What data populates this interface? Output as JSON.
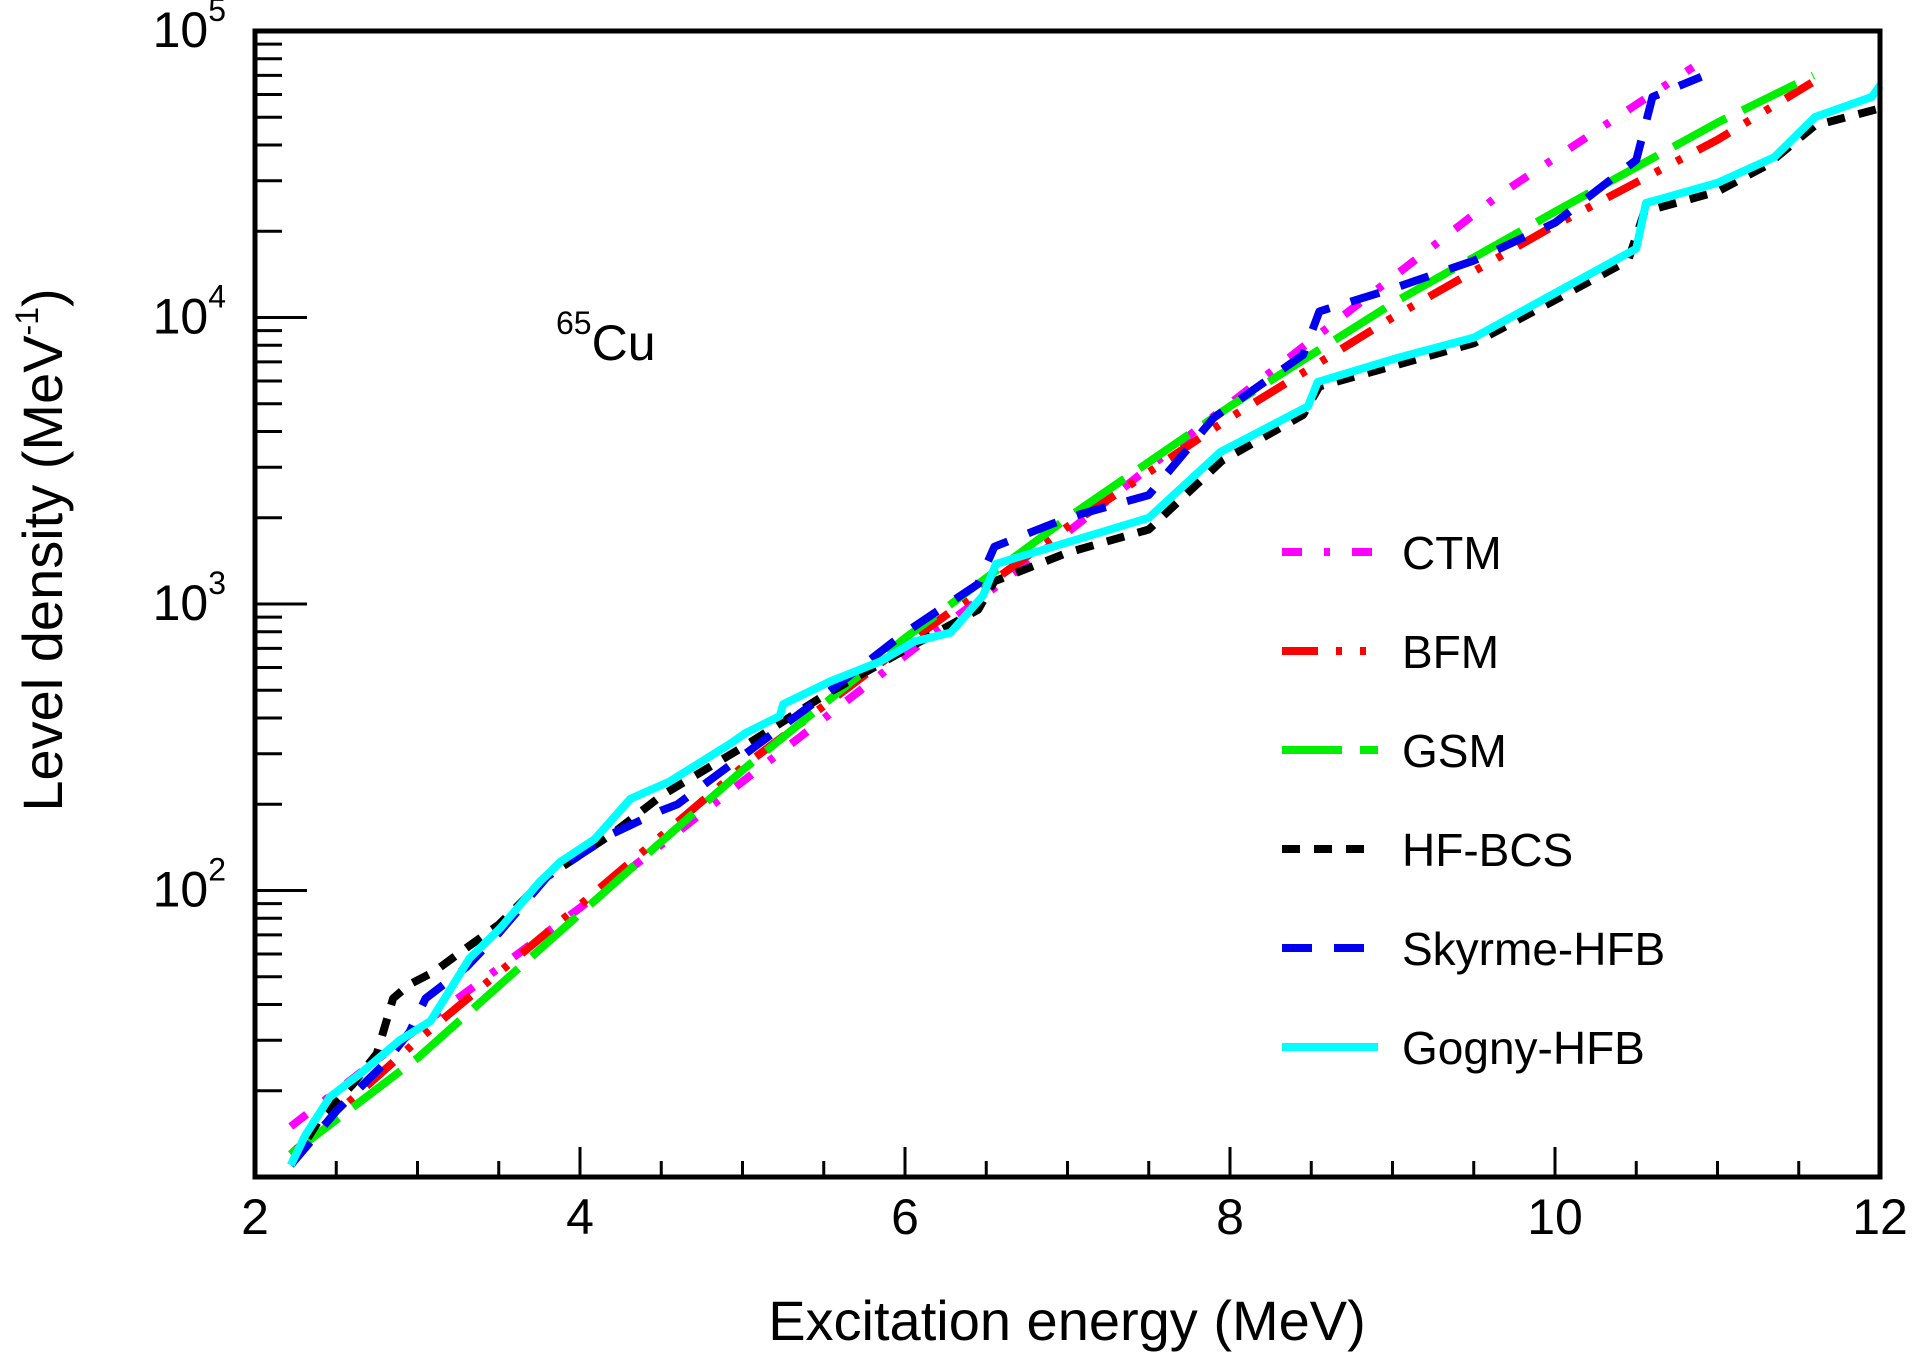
{
  "chart_data": {
    "type": "line",
    "title": "",
    "annotation": {
      "superscript": "65",
      "text": "Cu",
      "location": "upper-left"
    },
    "xlabel": "Excitation energy (MeV)",
    "ylabel": "Level density (MeV",
    "ylabel_sup": "-1",
    "ylabel_close": ")",
    "xlim": [
      2,
      12
    ],
    "ylim": [
      10,
      100000
    ],
    "yscale": "log",
    "grid": false,
    "legend_position": "right-middle",
    "x_ticks": [
      {
        "value": 2,
        "label": "2"
      },
      {
        "value": 4,
        "label": "4"
      },
      {
        "value": 6,
        "label": "6"
      },
      {
        "value": 8,
        "label": "8"
      },
      {
        "value": 10,
        "label": "10"
      },
      {
        "value": 12,
        "label": "12"
      }
    ],
    "x_minor_step": 0.5,
    "y_ticks": [
      {
        "value": 100,
        "base": "10",
        "exp": "2"
      },
      {
        "value": 1000,
        "base": "10",
        "exp": "3"
      },
      {
        "value": 10000,
        "base": "10",
        "exp": "4"
      },
      {
        "value": 100000,
        "base": "10",
        "exp": "5"
      }
    ],
    "series": [
      {
        "name": "CTM",
        "color": "#ff00ff",
        "style": "dash-dot-dot",
        "x": [
          2.22,
          3,
          4,
          5,
          6,
          7,
          7.82,
          8.5,
          9.66,
          10.85
        ],
        "y": [
          15,
          33,
          87,
          240,
          660,
          1780,
          4170,
          8320,
          26900,
          74800
        ]
      },
      {
        "name": "BFM",
        "color": "#ff0000",
        "style": "dash-dot-dot-long",
        "x": [
          2.22,
          3,
          4,
          5,
          6,
          7,
          8,
          9,
          10,
          11,
          11.58
        ],
        "y": [
          12,
          30,
          89,
          270,
          720,
          1860,
          4470,
          10000,
          21000,
          41700,
          66000
        ]
      },
      {
        "name": "GSM",
        "color": "#00ee00",
        "style": "long-dash",
        "x": [
          2.22,
          3,
          4,
          4.5,
          5,
          6,
          7,
          8,
          9,
          10,
          11,
          11.59
        ],
        "y": [
          12,
          26,
          83,
          148,
          263,
          760,
          2000,
          4900,
          11200,
          23400,
          47900,
          70000
        ]
      },
      {
        "name": "HF-BCS",
        "color": "#000000",
        "style": "short-dash",
        "x": [
          2.22,
          2.4,
          2.6,
          2.75,
          2.85,
          2.95,
          3.1,
          3.3,
          3.5,
          3.8,
          4.2,
          4.5,
          5,
          5.5,
          6,
          6.45,
          6.55,
          7,
          7.5,
          7.95,
          8.45,
          8.55,
          9,
          9.5,
          10,
          10.45,
          10.55,
          11,
          11.3,
          11.6,
          12
        ],
        "y": [
          11,
          16,
          21,
          27,
          42,
          47,
          52,
          63,
          76,
          112,
          158,
          214,
          316,
          479,
          692,
          955,
          1200,
          1510,
          1820,
          3160,
          4570,
          5750,
          6760,
          8130,
          11500,
          15800,
          23400,
          27500,
          33900,
          46800,
          53700
        ]
      },
      {
        "name": "Skyrme-HFB",
        "color": "#0000ee",
        "style": "dash",
        "x": [
          2.22,
          2.5,
          2.8,
          2.95,
          3.05,
          3.3,
          3.5,
          3.8,
          4.2,
          4.5,
          4.6,
          5,
          5.5,
          6,
          6.45,
          6.55,
          7,
          7.5,
          7.9,
          8.45,
          8.55,
          9,
          9.5,
          10,
          10.5,
          10.6,
          10.9
        ],
        "y": [
          11,
          17,
          25,
          32,
          42,
          54,
          71,
          112,
          158,
          190,
          200,
          295,
          479,
          794,
          1175,
          1585,
          2000,
          2400,
          4470,
          7410,
          10500,
          12600,
          15800,
          21400,
          35500,
          58900,
          69200
        ]
      },
      {
        "name": "Gogny-HFB",
        "color": "#00ffff",
        "style": "solid",
        "x": [
          2.22,
          2.31,
          2.46,
          2.65,
          2.89,
          3.08,
          3.2,
          3.32,
          3.51,
          3.75,
          3.88,
          4.09,
          4.31,
          4.55,
          4.92,
          5.02,
          5.23,
          5.25,
          5.54,
          5.85,
          6.06,
          6.28,
          6.48,
          6.56,
          7.5,
          7.94,
          8.48,
          8.54,
          9.04,
          9.5,
          10.5,
          10.56,
          11,
          11.35,
          11.6,
          11.95,
          12
        ],
        "y": [
          11,
          14,
          19,
          23,
          30,
          35,
          45,
          58,
          74,
          107,
          126,
          151,
          209,
          240,
          324,
          355,
          407,
          447,
          537,
          631,
          741,
          794,
          1070,
          1380,
          2000,
          3390,
          4900,
          5960,
          7250,
          8510,
          17400,
          25100,
          29500,
          36300,
          50100,
          58900,
          64600
        ]
      }
    ]
  }
}
